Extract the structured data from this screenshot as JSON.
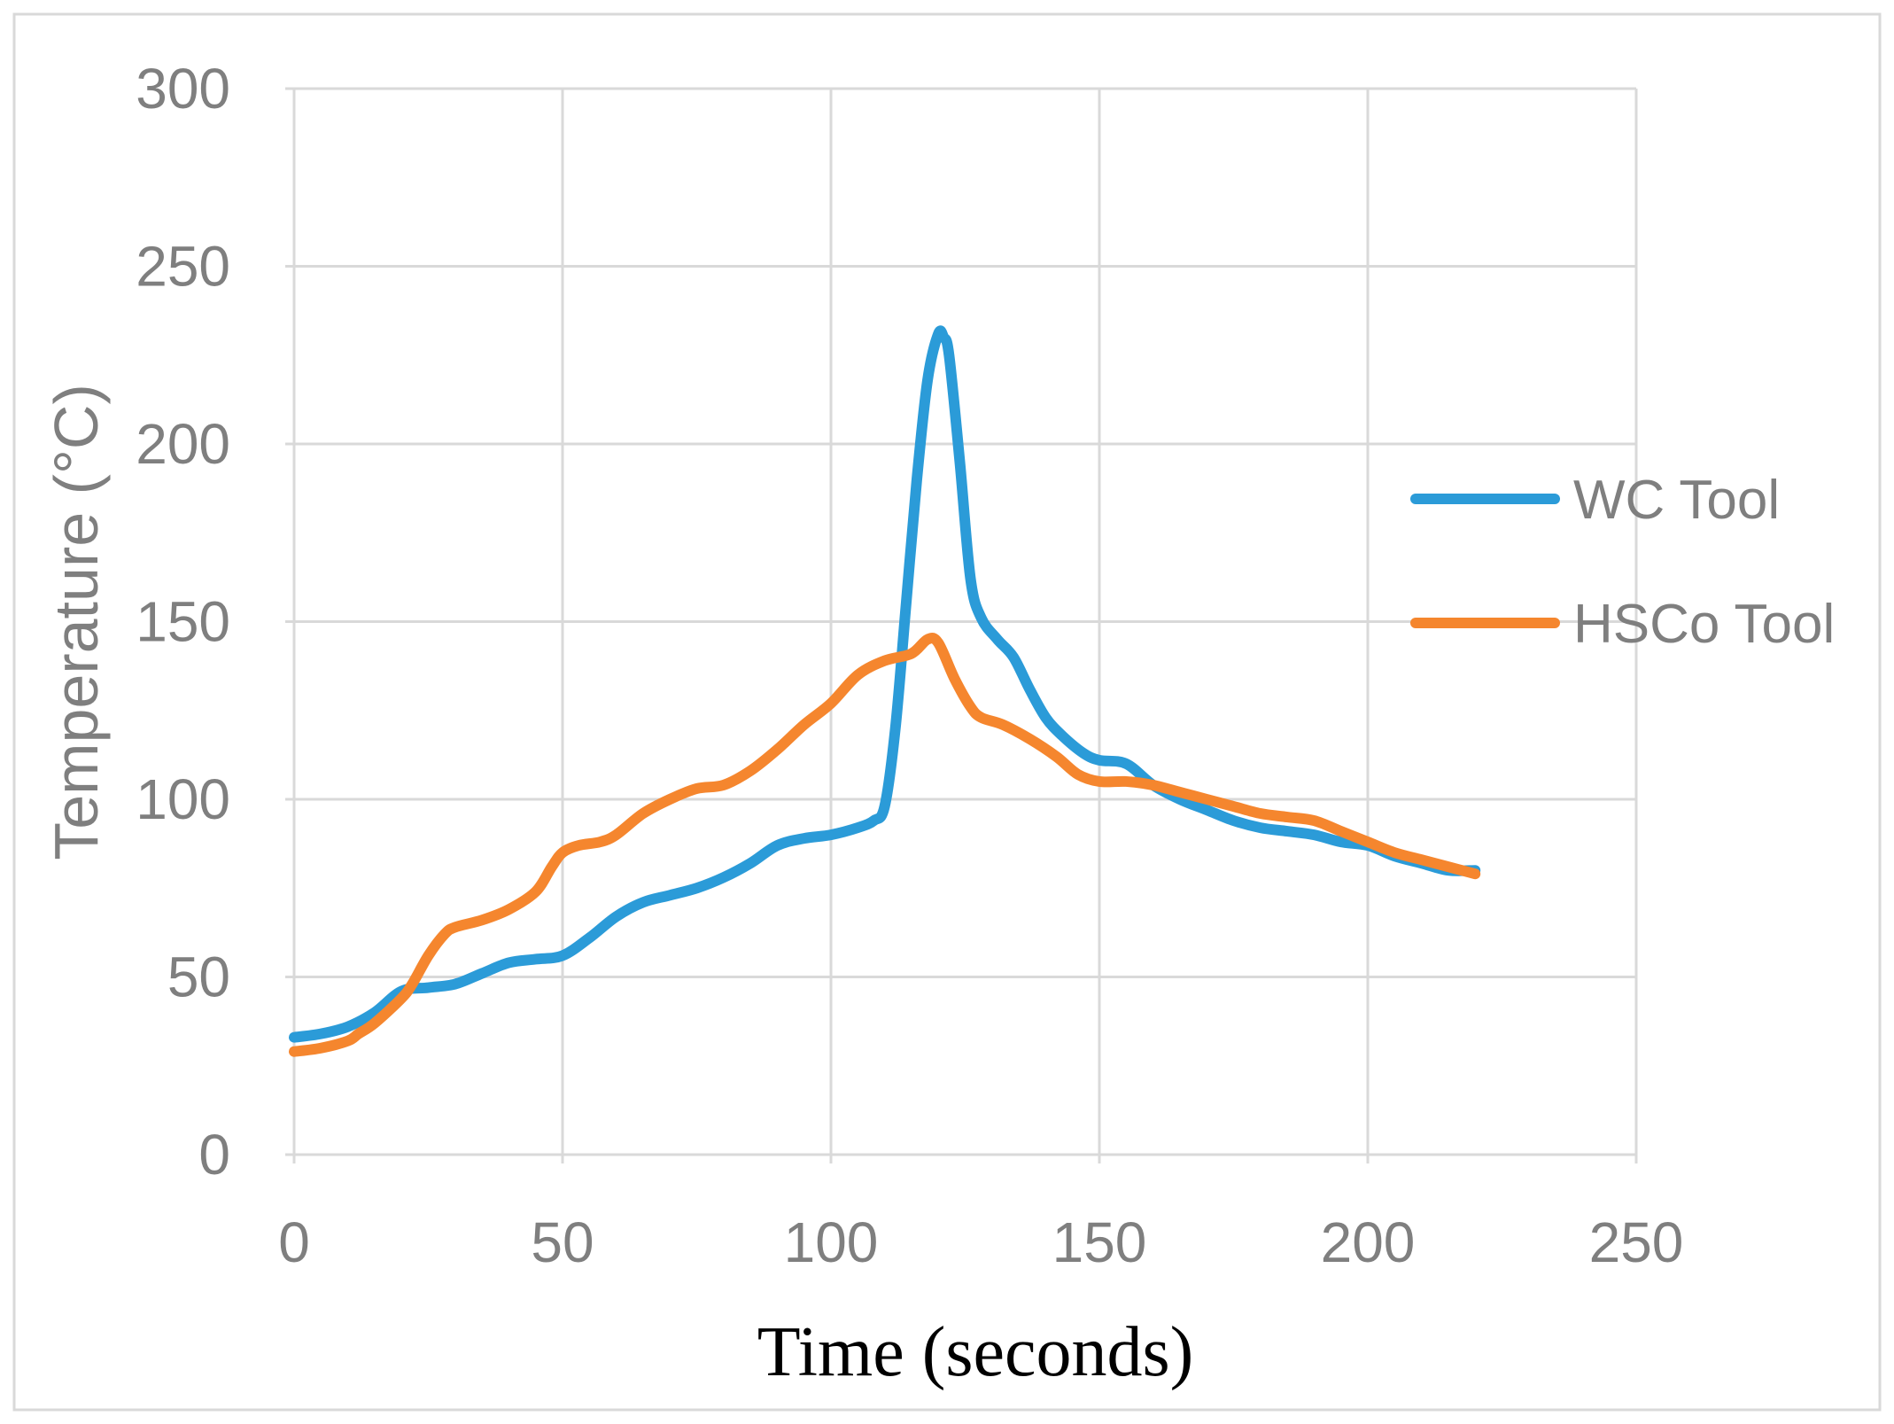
{
  "colors": {
    "grid": "#d9d9d9",
    "border": "#d9d9d9",
    "tick_text": "#7f7f7f"
  },
  "chart_data": {
    "type": "line",
    "xlabel": "Time (seconds)",
    "ylabel": "Temperature (°C)",
    "xlim": [
      0,
      250
    ],
    "ylim": [
      0,
      300
    ],
    "xticks": [
      0,
      50,
      100,
      150,
      200,
      250
    ],
    "yticks": [
      0,
      50,
      100,
      150,
      200,
      250,
      300
    ],
    "grid": true,
    "legend_position": "right",
    "series": [
      {
        "name": "WC Tool",
        "color": "#2b9bd8",
        "x": [
          0,
          5,
          10,
          15,
          20,
          25,
          30,
          35,
          40,
          45,
          50,
          55,
          60,
          65,
          70,
          75,
          80,
          85,
          90,
          95,
          100,
          105,
          108,
          110,
          112,
          114,
          116,
          118,
          120,
          121,
          122,
          124,
          126,
          128,
          131,
          134,
          137,
          140,
          143,
          147,
          150,
          155,
          160,
          165,
          170,
          175,
          180,
          185,
          190,
          195,
          200,
          205,
          210,
          215,
          220
        ],
        "y": [
          33,
          34,
          36,
          40,
          46,
          47,
          48,
          51,
          54,
          55,
          56,
          61,
          67,
          71,
          73,
          75,
          78,
          82,
          87,
          89,
          90,
          92,
          94,
          98,
          120,
          155,
          190,
          218,
          231,
          230,
          225,
          195,
          162,
          151,
          145,
          140,
          131,
          123,
          118,
          113,
          111,
          110,
          104,
          100,
          97,
          94,
          92,
          91,
          90,
          88,
          87,
          84,
          82,
          80,
          80
        ]
      },
      {
        "name": "HSCo Tool",
        "color": "#f5862e",
        "x": [
          0,
          5,
          10,
          12,
          15,
          20,
          22,
          25,
          28,
          30,
          35,
          40,
          45,
          48,
          50,
          53,
          57,
          60,
          65,
          70,
          75,
          80,
          85,
          90,
          95,
          100,
          105,
          110,
          115,
          118,
          120,
          123,
          126,
          128,
          132,
          137,
          142,
          146,
          150,
          155,
          160,
          165,
          170,
          175,
          180,
          185,
          190,
          195,
          200,
          205,
          210,
          215,
          220
        ],
        "y": [
          29,
          30,
          32,
          34,
          37,
          44,
          48,
          56,
          62,
          64,
          66,
          69,
          74,
          81,
          85,
          87,
          88,
          90,
          96,
          100,
          103,
          104,
          108,
          114,
          121,
          127,
          135,
          139,
          141,
          145,
          144,
          134,
          126,
          123,
          121,
          117,
          112,
          107,
          105,
          105,
          104,
          102,
          100,
          98,
          96,
          95,
          94,
          91,
          88,
          85,
          83,
          81,
          79
        ]
      }
    ]
  }
}
